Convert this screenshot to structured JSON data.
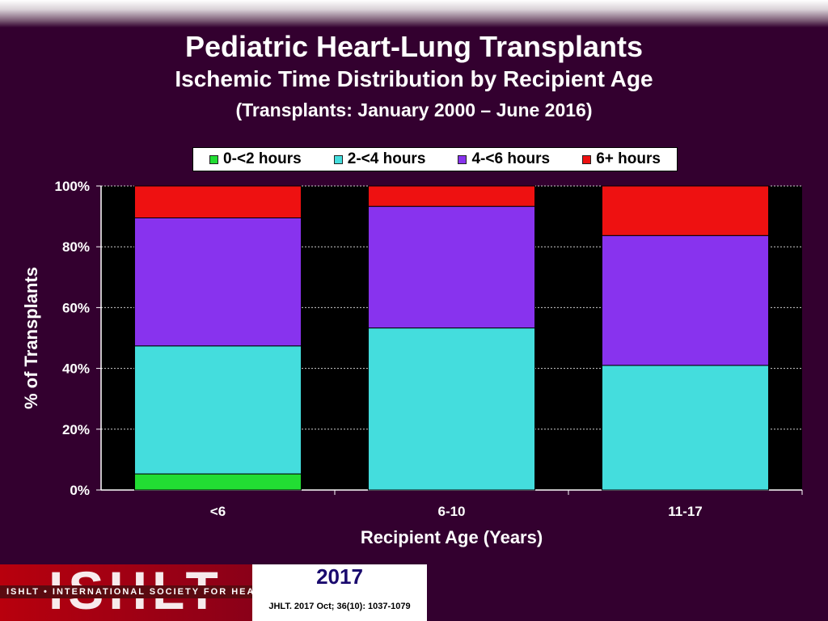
{
  "header": {
    "title": "Pediatric Heart-Lung Transplants",
    "subtitle": "Ischemic Time Distribution by Recipient Age",
    "subtitle2": "(Transplants: January 2000 – June 2016)"
  },
  "chart_data": {
    "type": "bar",
    "stacked": true,
    "percent": true,
    "categories": [
      "<6",
      "6-10",
      "11-17"
    ],
    "series": [
      {
        "name": "0-<2 hours",
        "color": "#22dd33",
        "values": [
          5.3,
          0,
          0
        ]
      },
      {
        "name": "2-<4 hours",
        "color": "#44dddd",
        "values": [
          42.1,
          53.3,
          41.0
        ]
      },
      {
        "name": "4-<6 hours",
        "color": "#8833ee",
        "values": [
          42.1,
          40.0,
          42.7
        ]
      },
      {
        "name": "6+ hours",
        "color": "#ee1111",
        "values": [
          10.5,
          6.7,
          16.3
        ]
      }
    ],
    "xlabel": "Recipient Age (Years)",
    "ylabel": "% of Transplants",
    "ylim": [
      0,
      100
    ],
    "yticks": [
      "0%",
      "20%",
      "40%",
      "60%",
      "80%",
      "100%"
    ],
    "grid": true,
    "legend": "top"
  },
  "footer": {
    "logo_text": "ISHLT",
    "strip_text": "ISHLT • INTERNATIONAL SOCIETY FOR HEART AND LUNG TRANSPLANTATION",
    "year": "2017",
    "citation": "JHLT. 2017 Oct; 36(10): 1037-1079"
  }
}
